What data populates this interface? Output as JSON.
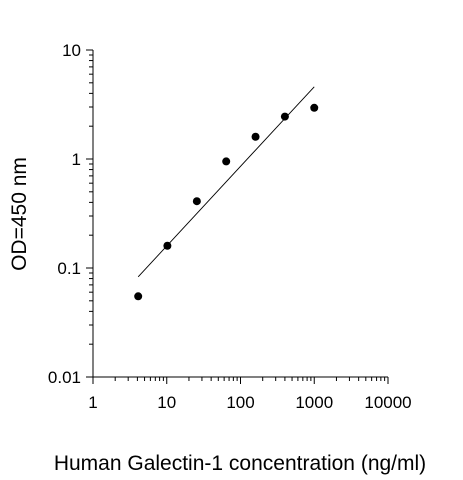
{
  "chart_data": {
    "type": "scatter",
    "title": "",
    "xlabel": "Human Galectin-1 concentration (ng/ml)",
    "ylabel": "OD=450 nm",
    "xscale": "log",
    "yscale": "log",
    "xlim": [
      1,
      10000
    ],
    "ylim": [
      0.01,
      10
    ],
    "x_ticks": [
      "1",
      "10",
      "100",
      "1000",
      "10000"
    ],
    "y_ticks": [
      "0.01",
      "0.1",
      "1",
      "10"
    ],
    "grid": false,
    "legend": "none",
    "series": [
      {
        "points": [
          {
            "x": 4.1,
            "y": 0.055
          },
          {
            "x": 10.2,
            "y": 0.16
          },
          {
            "x": 25.6,
            "y": 0.41
          },
          {
            "x": 64,
            "y": 0.95
          },
          {
            "x": 160,
            "y": 1.6
          },
          {
            "x": 400,
            "y": 2.45
          },
          {
            "x": 1000,
            "y": 2.95
          }
        ],
        "marker_color": "#000000"
      }
    ],
    "fit_line": {
      "type": "linear fit (log-log)",
      "points": [
        {
          "x": 4.1,
          "y": 0.083
        },
        {
          "x": 1000,
          "y": 4.6
        }
      ],
      "color": "#000000"
    }
  }
}
